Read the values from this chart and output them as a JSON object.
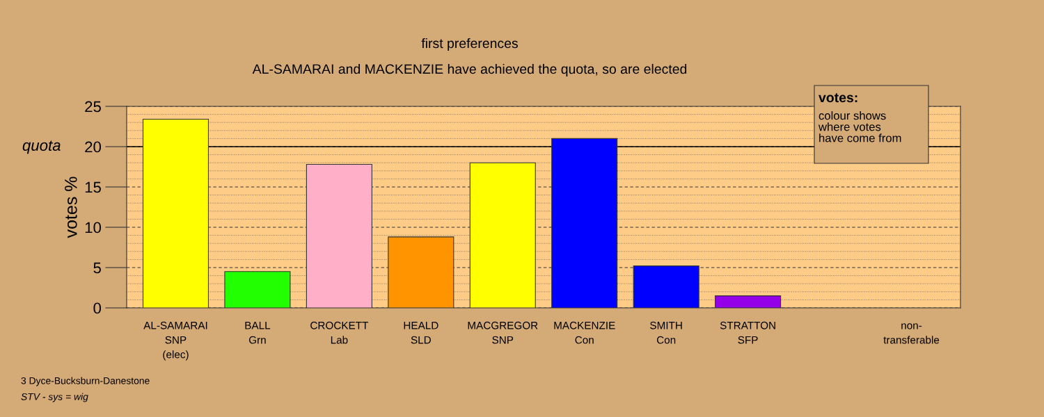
{
  "chart_data": {
    "type": "bar",
    "title": "first preferences",
    "subtitle": "AL-SAMARAI and MACKENZIE have achieved the quota, so are elected",
    "ylabel": "votes %",
    "categories": [
      "AL-SAMARAI\nSNP\n(elec)",
      "BALL\nGrn",
      "CROCKETT\nLab",
      "HEALD\nSLD",
      "MACGREGOR\nSNP",
      "MACKENZIE\nCon",
      "SMITH\nCon",
      "STRATTON\nSFP",
      null,
      "non-\ntransferable"
    ],
    "values": [
      23.4,
      4.5,
      17.8,
      8.8,
      18.0,
      21.0,
      5.2,
      1.5,
      null,
      null
    ],
    "colors": [
      "#ffff00",
      "#22ff00",
      "#ffb0c8",
      "#ff9400",
      "#ffff00",
      "#0000ff",
      "#0000ff",
      "#9400e8",
      "#ffffff",
      "#ffffff"
    ],
    "ylim": [
      0,
      25
    ],
    "yticks": [
      0,
      5,
      10,
      15,
      20,
      25
    ],
    "grid": "y",
    "ref_lines": [
      {
        "axis": "y",
        "value": 20,
        "label": "quota",
        "color": "#000000",
        "line_style": "solid"
      }
    ],
    "annotations": [
      "votes:",
      "colour shows\nwhere votes\nhave come from",
      "3 Dyce-Bucksburn-Danestone",
      "STV - sys = wig"
    ]
  }
}
